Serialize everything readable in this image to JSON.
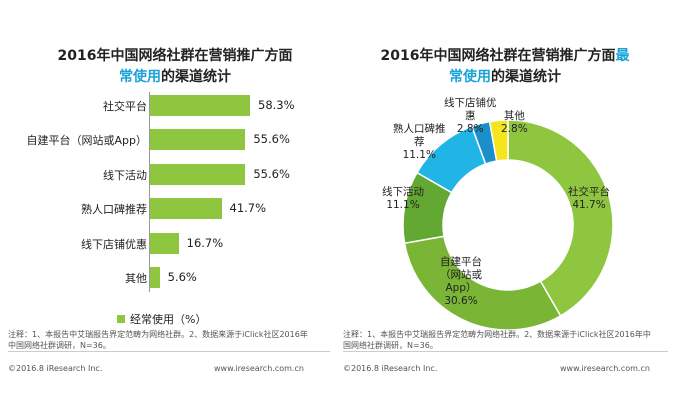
{
  "chart_data": [
    {
      "type": "bar",
      "orientation": "horizontal",
      "title_line1": "2016年中国网络社群在营销推广方面",
      "title_line2_highlight": "常使用",
      "title_line2_rest": "的渠道统计",
      "categories": [
        "社交平台",
        "自建平台（网站或App）",
        "线下活动",
        "熟人口碑推荐",
        "线下店铺优惠",
        "其他"
      ],
      "values": [
        58.3,
        55.6,
        55.6,
        41.7,
        16.7,
        5.6
      ],
      "labels": [
        "58.3%",
        "55.6%",
        "55.6%",
        "41.7%",
        "16.7%",
        "5.6%"
      ],
      "legend": "经常使用（%）",
      "legend_position": "bottom",
      "bar_color": "#8ec63f"
    },
    {
      "type": "pie",
      "donut": true,
      "title_line1": "2016年中国网络社群在营销推广方面",
      "title_line1_highlight": "最",
      "title_line2_highlight": "常使用",
      "title_line2_rest": "的渠道统计",
      "slices": [
        {
          "label": "社交平台",
          "value": 41.7,
          "display": "41.7%",
          "color": "#8ec63f"
        },
        {
          "label": "自建平台（网站或App）",
          "value": 30.6,
          "display": "30.6%",
          "color": "#7ab536"
        },
        {
          "label": "线下活动",
          "value": 11.1,
          "display": "11.1%",
          "color": "#63a832"
        },
        {
          "label": "熟人口碑推荐",
          "value": 11.1,
          "display": "11.1%",
          "color": "#21b5e6"
        },
        {
          "label": "线下店铺优惠",
          "value": 2.8,
          "display": "2.8%",
          "color": "#1a8fc9"
        },
        {
          "label": "其他",
          "value": 2.8,
          "display": "2.8%",
          "color": "#f5e51f"
        }
      ],
      "slice_text": {
        "social": [
          "社交平台",
          "41.7%"
        ],
        "self": [
          "自建平台",
          "（网站或",
          "App）",
          "30.6%"
        ],
        "offline": [
          "线下活动",
          "11.1%"
        ],
        "wom": [
          "熟人口碑推",
          "荐",
          "11.1%"
        ],
        "shop": [
          "线下店铺优",
          "惠",
          "2.8%"
        ],
        "other": [
          "其他",
          "2.8%"
        ]
      }
    }
  ],
  "notes": {
    "left": "注释：1、本报告中艾瑞报告界定范畴为网络社群。2、数据来源于iClick社区2016年中国网络社群调研，N=36。",
    "right": "注释：1、本报告中艾瑞报告界定范畴为网络社群。2、数据来源于iClick社区2016年中国网络社群调研，N=36。"
  },
  "footer": {
    "copyright": "©2016.8 iResearch Inc.",
    "site": "www.iresearch.com.cn"
  }
}
